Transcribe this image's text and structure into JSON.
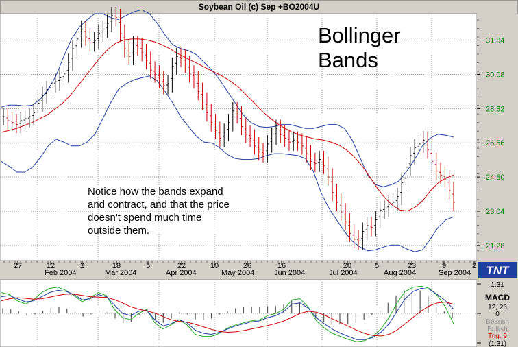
{
  "window": {
    "title": "Soybean Oil (c) Sep +BO2004U"
  },
  "annotation_title": [
    "Bollinger",
    "Bands"
  ],
  "annotation_text": [
    "Notice how the bands expand",
    "and contract, and that the price",
    "doesn't spend much time",
    "outside them."
  ],
  "logo_text": "TNT",
  "colors": {
    "price_bar_up": "#000000",
    "price_bar_down": "#cc0000",
    "middle_band": "#cc0000",
    "outer_band": "#1f3f9f",
    "grid": "#8f8f8f",
    "macd_line": "#1f3f9f",
    "signal_line": "#cc0000",
    "trig_line": "#22aa22",
    "y_label": "#008000"
  },
  "chart_data": [
    {
      "type": "bar",
      "title": "Soybean Oil (c) Sep +BO2004U",
      "xlabel": "",
      "ylabel": "",
      "ylim": [
        20.5,
        33.2
      ],
      "y_ticks": [
        "31.84",
        "30.08",
        "28.32",
        "26.56",
        "24.80",
        "23.04",
        "21.28"
      ],
      "x_day_ticks": [
        "27",
        "12",
        "2",
        "18",
        "5",
        "22",
        "10",
        "26",
        "16",
        "20",
        "5",
        "23",
        "9",
        "2"
      ],
      "x_month_ticks": [
        "Feb 2004",
        "Mar 2004",
        "Apr 2004",
        "May 2004",
        "Jun 2004",
        "Jul 2004",
        "Aug 2004",
        "Sep 2004"
      ],
      "grid": true,
      "series": [
        {
          "name": "",
          "kind": "price_close",
          "values": [
            27.9,
            27.7,
            27.6,
            27.5,
            27.7,
            27.8,
            27.9,
            28.1,
            28.6,
            29.0,
            29.3,
            29.6,
            29.7,
            29.9,
            30.1,
            30.7,
            31.4,
            31.9,
            32.4,
            32.0,
            31.7,
            31.8,
            32.2,
            32.4,
            32.7,
            33.1,
            33.0,
            32.2,
            31.4,
            31.0,
            31.6,
            31.5,
            31.2,
            30.8,
            30.3,
            30.1,
            29.8,
            29.5,
            29.6,
            30.5,
            31.0,
            30.9,
            30.6,
            30.1,
            29.8,
            29.2,
            28.7,
            28.1,
            27.6,
            27.2,
            26.8,
            27.1,
            27.6,
            28.2,
            28.0,
            27.4,
            27.0,
            26.8,
            26.4,
            26.1,
            26.0,
            26.5,
            26.9,
            27.3,
            27.0,
            26.8,
            26.6,
            26.7,
            26.6,
            26.4,
            26.0,
            25.6,
            25.5,
            25.7,
            25.4,
            24.8,
            24.0,
            23.5,
            23.0,
            22.5,
            21.9,
            21.6,
            21.5,
            22.0,
            22.3,
            22.2,
            22.6,
            23.1,
            23.2,
            23.4,
            23.5,
            23.8,
            24.5,
            25.3,
            25.9,
            26.3,
            26.5,
            26.7,
            26.2,
            25.6,
            25.1,
            24.9,
            24.7,
            24.1,
            23.5
          ]
        },
        {
          "name": "",
          "kind": "middle_band",
          "values": [
            27.1,
            27.2,
            27.3,
            27.45,
            27.6,
            27.8,
            28.0,
            28.3,
            28.6,
            29.0,
            29.5,
            30.0,
            30.5,
            31.0,
            31.4,
            31.7,
            31.85,
            31.9,
            31.9,
            31.85,
            31.75,
            31.6,
            31.4,
            31.15,
            30.95,
            30.75,
            30.55,
            30.35,
            30.15,
            29.95,
            29.7,
            29.4,
            29.0,
            28.6,
            28.2,
            27.85,
            27.55,
            27.3,
            27.1,
            26.95,
            26.85,
            26.75,
            26.7,
            26.6,
            26.45,
            26.2,
            25.85,
            25.4,
            24.85,
            24.25,
            23.75,
            23.35,
            23.1,
            23.05,
            23.25,
            23.6,
            24.1,
            24.5,
            24.75,
            24.9
          ]
        },
        {
          "name": "",
          "kind": "upper_band",
          "values": [
            28.4,
            28.5,
            28.5,
            28.45,
            28.5,
            28.8,
            29.3,
            30.0,
            31.0,
            31.9,
            32.5,
            32.9,
            33.2,
            33.2,
            33.0,
            32.9,
            33.1,
            33.3,
            33.4,
            33.2,
            32.7,
            32.1,
            31.6,
            31.4,
            31.3,
            31.1,
            30.7,
            30.3,
            29.8,
            29.2,
            28.6,
            28.0,
            27.6,
            27.4,
            27.35,
            27.4,
            27.5,
            27.5,
            27.4,
            27.3,
            27.3,
            27.4,
            27.5,
            27.5,
            27.3,
            26.7,
            25.8,
            24.9,
            24.4,
            24.3,
            24.4,
            24.6,
            25.1,
            25.7,
            26.4,
            26.8,
            27.0,
            26.95,
            26.85
          ]
        },
        {
          "name": "",
          "kind": "lower_band",
          "values": [
            25.6,
            25.35,
            25.05,
            25.05,
            25.3,
            25.8,
            26.4,
            26.75,
            26.6,
            26.4,
            26.4,
            26.6,
            27.0,
            27.8,
            28.6,
            29.3,
            29.6,
            29.8,
            29.9,
            30.0,
            29.75,
            29.2,
            28.6,
            27.9,
            27.4,
            26.9,
            26.6,
            26.55,
            26.3,
            25.95,
            25.75,
            25.7,
            25.7,
            25.75,
            25.9,
            26.0,
            26.0,
            25.95,
            25.9,
            25.75,
            25.1,
            24.0,
            23.2,
            22.6,
            22.0,
            21.5,
            21.2,
            21.0,
            21.05,
            21.2,
            21.3,
            21.3,
            21.1,
            20.95,
            21.05,
            21.6,
            22.2,
            22.6,
            22.75
          ]
        }
      ]
    },
    {
      "type": "bar",
      "title": "MACD",
      "legend": [
        "MACD",
        "12, 26",
        "0",
        "Bearish",
        "Bullish",
        "Trig. 9"
      ],
      "y_ticks": [
        "1.31",
        "0",
        "(1.31)"
      ],
      "ylim": [
        -1.31,
        1.31
      ],
      "series": [
        {
          "name": "",
          "kind": "macd",
          "values": [
            0.8,
            0.85,
            0.7,
            0.55,
            0.6,
            0.8,
            1.0,
            1.1,
            1.05,
            0.9,
            0.65,
            0.7,
            0.9,
            0.8,
            0.4,
            0.0,
            -0.1,
            0.1,
            0.15,
            -0.3,
            -0.6,
            -0.5,
            -0.3,
            -0.45,
            -0.8,
            -0.95,
            -1.0,
            -0.9,
            -0.75,
            -0.6,
            -0.5,
            -0.4,
            -0.35,
            -0.2,
            -0.1,
            0.1,
            0.45,
            0.5,
            0.25,
            -0.2,
            -0.5,
            -0.75,
            -0.95,
            -1.1,
            -1.25,
            -1.25,
            -1.15,
            -0.9,
            -0.5,
            0.1,
            0.7,
            1.05,
            1.2,
            1.15,
            0.9,
            0.6,
            0.2
          ]
        },
        {
          "name": "",
          "kind": "signal",
          "values": [
            0.6,
            0.7,
            0.75,
            0.72,
            0.68,
            0.7,
            0.78,
            0.86,
            0.92,
            0.92,
            0.86,
            0.8,
            0.78,
            0.76,
            0.66,
            0.5,
            0.32,
            0.2,
            0.12,
            0.02,
            -0.15,
            -0.3,
            -0.38,
            -0.42,
            -0.52,
            -0.64,
            -0.76,
            -0.86,
            -0.9,
            -0.88,
            -0.82,
            -0.74,
            -0.66,
            -0.58,
            -0.48,
            -0.36,
            -0.18,
            0.0,
            0.1,
            0.06,
            -0.08,
            -0.26,
            -0.44,
            -0.62,
            -0.8,
            -0.96,
            -1.05,
            -1.08,
            -1.0,
            -0.8,
            -0.5,
            -0.18,
            0.12,
            0.36,
            0.5,
            0.54,
            0.44
          ]
        },
        {
          "name": "",
          "kind": "trigger",
          "values": [
            1.0,
            0.9,
            0.6,
            0.45,
            0.65,
            1.0,
            1.2,
            1.25,
            1.1,
            0.85,
            0.55,
            0.75,
            1.0,
            0.85,
            0.2,
            -0.2,
            -0.3,
            0.0,
            0.2,
            -0.45,
            -0.75,
            -0.55,
            -0.3,
            -0.55,
            -1.0,
            -1.1,
            -1.1,
            -0.95,
            -0.7,
            -0.55,
            -0.45,
            -0.35,
            -0.3,
            -0.1,
            0.0,
            0.2,
            0.65,
            0.7,
            0.3,
            -0.35,
            -0.7,
            -0.95,
            -1.1,
            -1.25,
            -1.35,
            -1.3,
            -1.1,
            -0.75,
            -0.2,
            0.5,
            1.05,
            1.25,
            1.3,
            1.2,
            0.85,
            0.3,
            -0.5
          ]
        },
        {
          "name": "",
          "kind": "histogram",
          "values": [
            0.25,
            0.2,
            0.1,
            -0.1,
            -0.05,
            0.12,
            0.25,
            0.3,
            0.22,
            0.05,
            -0.15,
            -0.05,
            0.15,
            0.05,
            -0.25,
            -0.45,
            -0.4,
            -0.1,
            0.05,
            -0.3,
            -0.45,
            -0.25,
            0.05,
            -0.05,
            -0.28,
            -0.32,
            -0.25,
            -0.05,
            0.1,
            0.25,
            0.3,
            0.32,
            0.3,
            0.35,
            0.35,
            0.42,
            0.6,
            0.5,
            0.15,
            -0.25,
            -0.42,
            -0.5,
            -0.52,
            -0.5,
            -0.45,
            -0.3,
            -0.1,
            0.15,
            0.5,
            0.85,
            1.1,
            1.2,
            1.1,
            0.8,
            0.45,
            0.1,
            -0.2
          ]
        }
      ]
    }
  ]
}
